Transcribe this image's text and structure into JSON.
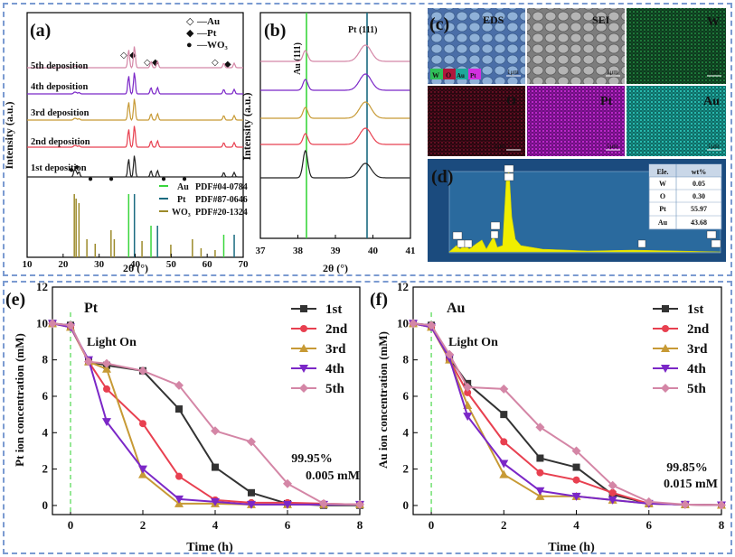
{
  "panels": {
    "a": {
      "label": "(a)",
      "ylabel": "Intensity (a.u.)",
      "xlabel": "2θ (°)",
      "xlim": [
        10,
        70
      ],
      "xticks": [
        "10",
        "20",
        "30",
        "40",
        "50",
        "60",
        "70"
      ],
      "legend_markers": [
        {
          "symbol": "◇",
          "text": "—Au"
        },
        {
          "symbol": "◆",
          "text": "—Pt"
        },
        {
          "symbol": "●",
          "text": "—WO₃"
        }
      ],
      "traces": [
        {
          "name": "5th deposition",
          "color": "#d486a6"
        },
        {
          "name": "4th deposition",
          "color": "#7b27c7"
        },
        {
          "name": "3rd deposition",
          "color": "#c79a35"
        },
        {
          "name": "2nd deposition",
          "color": "#e84050"
        },
        {
          "name": "1st deposition",
          "color": "#222222"
        }
      ],
      "reference": [
        {
          "phase": "Au",
          "pdf": "PDF#04-0784",
          "color": "#39d63c"
        },
        {
          "phase": "Pt",
          "pdf": "PDF#87-0646",
          "color": "#1a6b80"
        },
        {
          "phase": "WO₃",
          "pdf": "PDF#20-1324",
          "color": "#9c8a2a"
        }
      ]
    },
    "b": {
      "label": "(b)",
      "ylabel": "Intensity (a.u.)",
      "xlabel": "2θ (°)",
      "xticks": [
        "37",
        "38",
        "39",
        "40",
        "41"
      ],
      "line_labels": [
        "Au (111)",
        "Pt (111)"
      ]
    },
    "c": {
      "label": "(c)",
      "tiles": [
        "EDS",
        "SEI",
        "W",
        "O",
        "Pt",
        "Au"
      ],
      "scale": "1μm",
      "legend_chips": [
        "W",
        "O",
        "Au",
        "Pt"
      ]
    },
    "d": {
      "label": "(d)",
      "table_header": [
        "Ele.",
        "wt%"
      ],
      "table_rows": [
        [
          "W",
          "0.05"
        ],
        [
          "O",
          "0.30"
        ],
        [
          "Pt",
          "55.97"
        ],
        [
          "Au",
          "43.68"
        ]
      ]
    }
  },
  "chart_data": [
    {
      "type": "line",
      "panel": "e",
      "label": "(e)",
      "title": "Pt",
      "annotation": "Light On",
      "xlabel": "Time (h)",
      "ylabel": "Pt  ion concentration (mM)",
      "xlim": [
        -0.5,
        8
      ],
      "ylim": [
        -0.5,
        12
      ],
      "xticks": [
        0,
        2,
        4,
        6,
        8
      ],
      "yticks": [
        0,
        2,
        4,
        6,
        8,
        10,
        12
      ],
      "result_percent": "99.95%",
      "result_conc": "0.005 mM",
      "series": [
        {
          "name": "1st",
          "color": "#333333",
          "marker": "square",
          "x": [
            -0.5,
            0,
            0.5,
            1,
            2,
            3,
            4,
            5,
            6,
            7,
            8
          ],
          "y": [
            10,
            9.9,
            7.9,
            7.7,
            7.4,
            5.3,
            2.1,
            0.7,
            0.1,
            0.01,
            0.01
          ]
        },
        {
          "name": "2nd",
          "color": "#e84050",
          "marker": "circle",
          "x": [
            -0.5,
            0,
            0.5,
            1,
            2,
            3,
            4,
            5,
            6,
            7,
            8
          ],
          "y": [
            10,
            9.8,
            7.9,
            6.4,
            4.5,
            1.6,
            0.3,
            0.15,
            0.15,
            0.1,
            0.05
          ]
        },
        {
          "name": "3rd",
          "color": "#c79a35",
          "marker": "triangle",
          "x": [
            -0.5,
            0,
            0.5,
            1,
            2,
            3,
            4,
            5,
            6,
            7,
            8
          ],
          "y": [
            10,
            9.8,
            7.9,
            7.5,
            1.7,
            0.1,
            0.1,
            0.05,
            0.05,
            0.05,
            0.05
          ]
        },
        {
          "name": "4th",
          "color": "#7b27c7",
          "marker": "triangle-down",
          "x": [
            -0.5,
            0,
            0.5,
            1,
            2,
            3,
            4,
            5,
            6,
            7,
            8
          ],
          "y": [
            10,
            9.8,
            8.0,
            4.6,
            2.0,
            0.35,
            0.2,
            0.05,
            0.05,
            0.05,
            0.05
          ]
        },
        {
          "name": "5th",
          "color": "#d486a6",
          "marker": "diamond",
          "x": [
            -0.5,
            0,
            0.5,
            1,
            2,
            3,
            4,
            5,
            6,
            7,
            8
          ],
          "y": [
            10,
            9.9,
            7.9,
            7.8,
            7.4,
            6.6,
            4.1,
            3.5,
            1.2,
            0.1,
            0.05
          ]
        }
      ]
    },
    {
      "type": "line",
      "panel": "f",
      "label": "(f)",
      "title": "Au",
      "annotation": "Light On",
      "xlabel": "Time (h)",
      "ylabel": "Au  ion concentration (mM)",
      "xlim": [
        -0.5,
        8
      ],
      "ylim": [
        -0.5,
        12
      ],
      "xticks": [
        0,
        2,
        4,
        6,
        8
      ],
      "yticks": [
        0,
        2,
        4,
        6,
        8,
        10,
        12
      ],
      "result_percent": "99.85%",
      "result_conc": "0.015 mM",
      "series": [
        {
          "name": "1st",
          "color": "#333333",
          "marker": "square",
          "x": [
            -0.5,
            0,
            0.5,
            1,
            2,
            3,
            4,
            5,
            6,
            7,
            8
          ],
          "y": [
            10,
            9.9,
            8.1,
            6.7,
            5.0,
            2.6,
            2.1,
            0.6,
            0.1,
            0.05,
            0.02
          ]
        },
        {
          "name": "2nd",
          "color": "#e84050",
          "marker": "circle",
          "x": [
            -0.5,
            0,
            0.5,
            1,
            2,
            3,
            4,
            5,
            6,
            7,
            8
          ],
          "y": [
            10,
            9.8,
            8.0,
            6.2,
            3.5,
            1.8,
            1.4,
            0.7,
            0.1,
            0.05,
            0.02
          ]
        },
        {
          "name": "3rd",
          "color": "#c79a35",
          "marker": "triangle",
          "x": [
            -0.5,
            0,
            0.5,
            1,
            2,
            3,
            4,
            5,
            6,
            7,
            8
          ],
          "y": [
            10,
            9.8,
            8.0,
            5.5,
            1.7,
            0.5,
            0.5,
            0.3,
            0.1,
            0.05,
            0.02
          ]
        },
        {
          "name": "4th",
          "color": "#7b27c7",
          "marker": "triangle-down",
          "x": [
            -0.5,
            0,
            0.5,
            1,
            2,
            3,
            4,
            5,
            6,
            7,
            8
          ],
          "y": [
            10,
            9.8,
            8.1,
            4.9,
            2.3,
            0.8,
            0.5,
            0.3,
            0.1,
            0.05,
            0.02
          ]
        },
        {
          "name": "5th",
          "color": "#d486a6",
          "marker": "diamond",
          "x": [
            -0.5,
            0,
            0.5,
            1,
            2,
            3,
            4,
            5,
            6,
            7,
            8
          ],
          "y": [
            10,
            9.9,
            8.3,
            6.5,
            6.4,
            4.3,
            3.0,
            1.1,
            0.2,
            0.05,
            0.02
          ]
        }
      ]
    }
  ]
}
